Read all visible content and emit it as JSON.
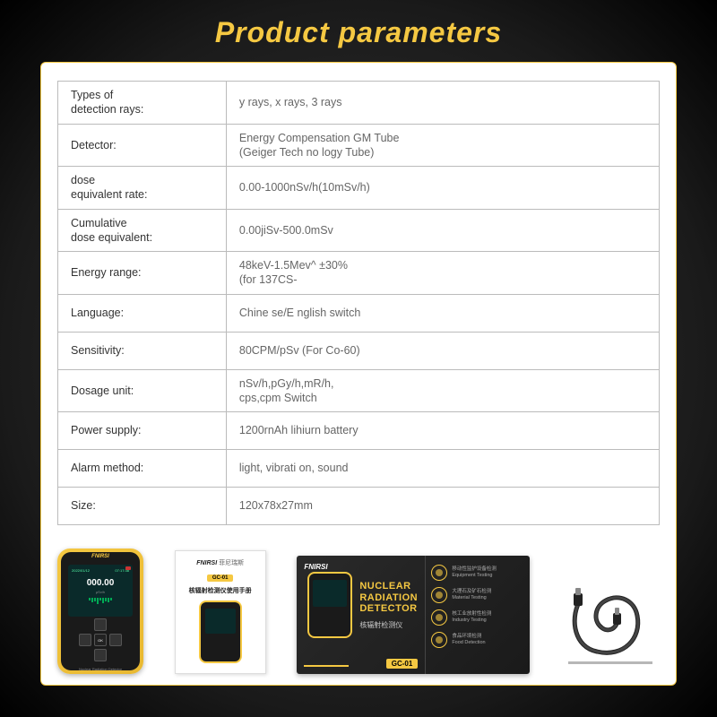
{
  "title": "Product parameters",
  "colors": {
    "accent": "#f5c842",
    "panel_bg": "#ffffff",
    "border": "#bbbbbb",
    "label_text": "#333333",
    "value_text": "#666666",
    "bg_dark": "#1a1a1a"
  },
  "spec_table": {
    "rows": [
      {
        "label": "Types of\ndetection rays:",
        "value": "y rays, x rays, 3 rays"
      },
      {
        "label": "Detector:",
        "value": "Energy Compensation GM Tube\n(Geiger Tech no logy Tube)"
      },
      {
        "label": "dose\nequivalent rate:",
        "value": "0.00-1000nSv/h(10mSv/h)"
      },
      {
        "label": "Cumulative\ndose equivalent:",
        "value": "0.00jiSv-500.0mSv"
      },
      {
        "label": "Energy range:",
        "value": "48keV-1.5Mev^ ±30%\n(for 137CS-"
      },
      {
        "label": "Language:",
        "value": "Chine se/E nglish switch"
      },
      {
        "label": "Sensitivity:",
        "value": "80CPM/pSv (For Co-60)"
      },
      {
        "label": "Dosage unit:",
        "value": "nSv/h,pGy/h,mR/h,\ncps,cpm Switch"
      },
      {
        "label": "Power supply:",
        "value": "1200rnAh lihiurn battery"
      },
      {
        "label": "Alarm method:",
        "value": "light, vibrati on, sound"
      },
      {
        "label": "Size:",
        "value": "120x78x27mm"
      }
    ]
  },
  "device": {
    "brand": "FNIRSI",
    "screen_main": "000.00",
    "screen_unit": "μSv/h",
    "sub_label": "Nuclear Radiation Detector",
    "ok_label": "OK"
  },
  "manual": {
    "brand": "FNIRSI",
    "brand_cn": "菲尼瑞斯",
    "badge": "GC-01",
    "title_cn": "核辐射检测仪使用手册"
  },
  "box": {
    "brand": "FNIRSI",
    "title_en": "NUCLEAR\nRADIATION\nDETECTOR",
    "title_cn": "核辐射检测仪",
    "model": "GC-01",
    "features": [
      {
        "cn": "移动性监护设备检测",
        "en": "Equipment Testing"
      },
      {
        "cn": "大理石及矿石检测",
        "en": "Material Testing"
      },
      {
        "cn": "核工业放射性检测",
        "en": "Industry Testing"
      },
      {
        "cn": "食品环境检测",
        "en": "Food Detection"
      }
    ]
  }
}
